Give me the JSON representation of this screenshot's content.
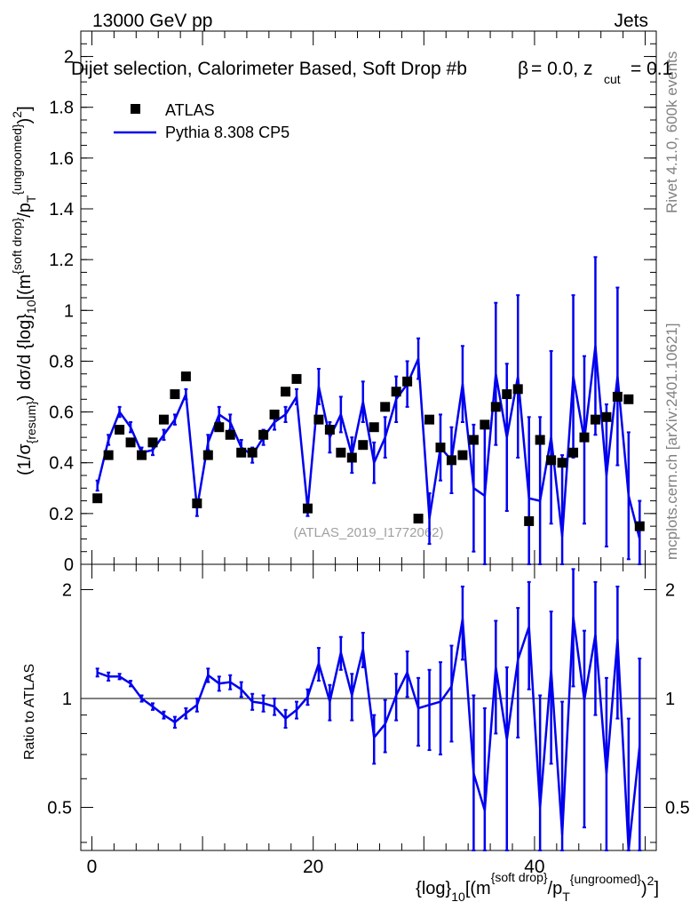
{
  "header": {
    "energy_label": "13000 GeV pp",
    "process_label": "Jets",
    "selection_text": "Dijet selection, Calorimeter Based, Soft Drop #b",
    "beta_text": "= 0.0, z",
    "beta_symbol": "β",
    "zcut_sub": "cut",
    "zcut_value": "= 0.1"
  },
  "side_labels": {
    "rivet": "Rivet 4.1.0,  600k events",
    "mcplots": "mcplots.cern.ch [arXiv:2401.10621]"
  },
  "watermark": "(ATLAS_2019_I1772062)",
  "legend": {
    "data_label": "ATLAS",
    "mc_label": "Pythia 8.308 CP5"
  },
  "colors": {
    "mc": "#0000ee",
    "data": "#000000",
    "axis": "#000000",
    "watermark": "#a0a0a0",
    "side_text": "#808080"
  },
  "chart_data": [
    {
      "type": "scatter",
      "panel": "main",
      "title": "Dijet selection, Calorimeter Based, Soft Drop β = 0.0, z_cut = 0.1",
      "ylabel": "(1/σ_{resum}) dσ/d {log}_10[(m^{soft drop}/p_T^{ungroomed})^2]",
      "xlim": [
        -1,
        51
      ],
      "ylim": [
        0,
        2.1
      ],
      "xticks": [
        0,
        20,
        40
      ],
      "yticks": [
        0,
        0.2,
        0.4,
        0.6,
        0.8,
        1,
        1.2,
        1.4,
        1.6,
        1.8,
        2
      ],
      "ytick_labels": [
        "0",
        "0.2",
        "0.4",
        "0.6",
        "0.8",
        "1",
        "1.2",
        "1.4",
        "1.6",
        "1.8",
        "2"
      ],
      "series": [
        {
          "name": "ATLAS",
          "marker": "square",
          "x": [
            0.5,
            1.5,
            2.5,
            3.5,
            4.5,
            5.5,
            6.5,
            7.5,
            8.5,
            9.5,
            10.5,
            11.5,
            12.5,
            13.5,
            14.5,
            15.5,
            16.5,
            17.5,
            18.5,
            19.5,
            20.5,
            21.5,
            22.5,
            23.5,
            24.5,
            25.5,
            26.5,
            27.5,
            28.5,
            29.5,
            30.5,
            31.5,
            32.5,
            33.5,
            34.5,
            35.5,
            36.5,
            37.5,
            38.5,
            39.5,
            40.5,
            41.5,
            42.5,
            43.5,
            44.5,
            45.5,
            46.5,
            47.5,
            48.5,
            49.5
          ],
          "values": [
            0.26,
            0.43,
            0.53,
            0.48,
            0.43,
            0.48,
            0.57,
            0.67,
            0.74,
            0.24,
            0.43,
            0.54,
            0.51,
            0.44,
            0.44,
            0.51,
            0.59,
            0.68,
            0.73,
            0.22,
            0.57,
            0.53,
            0.44,
            0.42,
            0.47,
            0.54,
            0.62,
            0.68,
            0.72,
            0.18,
            0.57,
            0.46,
            0.41,
            0.43,
            0.49,
            0.55,
            0.62,
            0.67,
            0.69,
            0.17,
            0.49,
            0.41,
            0.4,
            0.44,
            0.5,
            0.57,
            0.58,
            0.66,
            0.65,
            0.15
          ]
        },
        {
          "name": "Pythia 8.308 CP5",
          "line": true,
          "x": [
            0.5,
            1.5,
            2.5,
            3.5,
            4.5,
            5.5,
            6.5,
            7.5,
            8.5,
            9.5,
            10.5,
            11.5,
            12.5,
            13.5,
            14.5,
            15.5,
            16.5,
            17.5,
            18.5,
            19.5,
            20.5,
            21.5,
            22.5,
            23.5,
            24.5,
            25.5,
            26.5,
            27.5,
            28.5,
            29.5,
            30.5,
            31.5,
            32.5,
            33.5,
            34.5,
            35.5,
            36.5,
            37.5,
            38.5,
            39.5,
            40.5,
            41.5,
            42.5,
            43.5,
            44.5,
            45.5,
            46.5,
            47.5,
            48.5,
            49.5
          ],
          "values": [
            0.31,
            0.49,
            0.6,
            0.54,
            0.44,
            0.45,
            0.51,
            0.57,
            0.67,
            0.22,
            0.48,
            0.59,
            0.56,
            0.46,
            0.43,
            0.5,
            0.56,
            0.59,
            0.66,
            0.22,
            0.7,
            0.5,
            0.59,
            0.43,
            0.64,
            0.4,
            0.5,
            0.65,
            0.71,
            0.81,
            0.18,
            0.46,
            0.41,
            0.71,
            0.3,
            0.27,
            0.75,
            0.5,
            0.74,
            0.26,
            0.25,
            0.5,
            0.11,
            0.74,
            0.49,
            0.86,
            0.35,
            0.74,
            0.27,
            0.1
          ],
          "errors": [
            0.02,
            0.02,
            0.02,
            0.02,
            0.02,
            0.02,
            0.02,
            0.02,
            0.02,
            0.03,
            0.03,
            0.03,
            0.03,
            0.03,
            0.03,
            0.03,
            0.03,
            0.03,
            0.03,
            0.03,
            0.07,
            0.06,
            0.07,
            0.07,
            0.08,
            0.08,
            0.08,
            0.09,
            0.09,
            0.08,
            0.1,
            0.13,
            0.13,
            0.15,
            0.25,
            0.27,
            0.28,
            0.29,
            0.32,
            0.32,
            0.33,
            0.34,
            0.32,
            0.32,
            0.33,
            0.35,
            0.28,
            0.35,
            0.25,
            0.15
          ]
        }
      ]
    },
    {
      "type": "line",
      "panel": "ratio",
      "xlabel": "{log}_10[(m^{soft drop}/p_T^{ungroomed})^2]",
      "ylabel": "Ratio to ATLAS",
      "xlim": [
        -1,
        51
      ],
      "ylim": [
        0.38,
        2.35
      ],
      "yscale": "log",
      "reference_line": 1,
      "xticks": [
        0,
        20,
        40
      ],
      "xtick_labels": [
        "0",
        "20",
        "40"
      ],
      "yticks": [
        0.5,
        1,
        2
      ],
      "ytick_labels": [
        "0.5",
        "1",
        "2"
      ],
      "series": [
        {
          "name": "Pythia 8.308 CP5 / ATLAS",
          "x": [
            0.5,
            1.5,
            2.5,
            3.5,
            4.5,
            5.5,
            6.5,
            7.5,
            8.5,
            9.5,
            10.5,
            11.5,
            12.5,
            13.5,
            14.5,
            15.5,
            16.5,
            17.5,
            18.5,
            19.5,
            20.5,
            21.5,
            22.5,
            23.5,
            24.5,
            25.5,
            26.5,
            27.5,
            28.5,
            29.5,
            30.5,
            31.5,
            32.5,
            33.5,
            34.5,
            35.5,
            36.5,
            37.5,
            38.5,
            39.5,
            40.5,
            41.5,
            42.5,
            43.5,
            44.5,
            45.5,
            46.5,
            47.5,
            48.5,
            49.5
          ],
          "values": [
            1.18,
            1.15,
            1.15,
            1.1,
            1.0,
            0.95,
            0.9,
            0.86,
            0.91,
            0.96,
            1.16,
            1.1,
            1.11,
            1.06,
            0.98,
            0.97,
            0.95,
            0.88,
            0.93,
            1.01,
            1.25,
            0.98,
            1.34,
            1.02,
            1.37,
            0.78,
            0.85,
            1.02,
            1.18,
            0.94,
            0.96,
            0.98,
            1.08,
            1.66,
            0.62,
            0.49,
            1.22,
            0.77,
            1.28,
            1.58,
            0.5,
            1.2,
            0.42,
            1.68,
            0.99,
            1.5,
            0.62,
            1.46,
            0.38,
            0.74
          ],
          "errors": [
            0.03,
            0.03,
            0.02,
            0.02,
            0.02,
            0.02,
            0.02,
            0.03,
            0.03,
            0.04,
            0.05,
            0.05,
            0.05,
            0.05,
            0.05,
            0.05,
            0.05,
            0.05,
            0.05,
            0.05,
            0.13,
            0.11,
            0.14,
            0.15,
            0.15,
            0.12,
            0.14,
            0.15,
            0.17,
            0.2,
            0.24,
            0.28,
            0.32,
            0.38,
            0.4,
            0.45,
            0.42,
            0.45,
            0.5,
            0.52,
            0.52,
            0.54,
            0.56,
            0.6,
            0.55,
            0.6,
            0.52,
            0.58,
            0.5,
            0.55
          ]
        }
      ]
    }
  ]
}
